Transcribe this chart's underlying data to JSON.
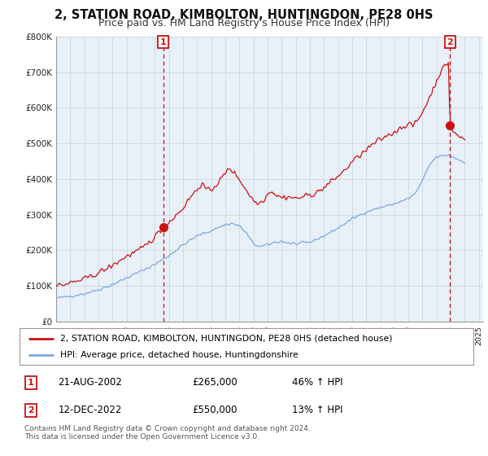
{
  "title": "2, STATION ROAD, KIMBOLTON, HUNTINGDON, PE28 0HS",
  "subtitle": "Price paid vs. HM Land Registry's House Price Index (HPI)",
  "title_fontsize": 10.5,
  "subtitle_fontsize": 9,
  "background_color": "#ffffff",
  "chart_bg_color": "#e8f0f8",
  "grid_color": "#c8d0d8",
  "red_color": "#cc1111",
  "blue_color": "#7aabdd",
  "sale1_year": 2002.6,
  "sale1_price": 265000,
  "sale2_year": 2022.95,
  "sale2_price": 550000,
  "ylim": [
    0,
    800000
  ],
  "xlim_start": 1995.0,
  "xlim_end": 2025.3,
  "legend_label_red": "2, STATION ROAD, KIMBOLTON, HUNTINGDON, PE28 0HS (detached house)",
  "legend_label_blue": "HPI: Average price, detached house, Huntingdonshire",
  "ann1_label": "1",
  "ann1_date": "21-AUG-2002",
  "ann1_price": "£265,000",
  "ann1_hpi": "46% ↑ HPI",
  "ann2_label": "2",
  "ann2_date": "12-DEC-2022",
  "ann2_price": "£550,000",
  "ann2_hpi": "13% ↑ HPI",
  "footer": "Contains HM Land Registry data © Crown copyright and database right 2024.\nThis data is licensed under the Open Government Licence v3.0."
}
